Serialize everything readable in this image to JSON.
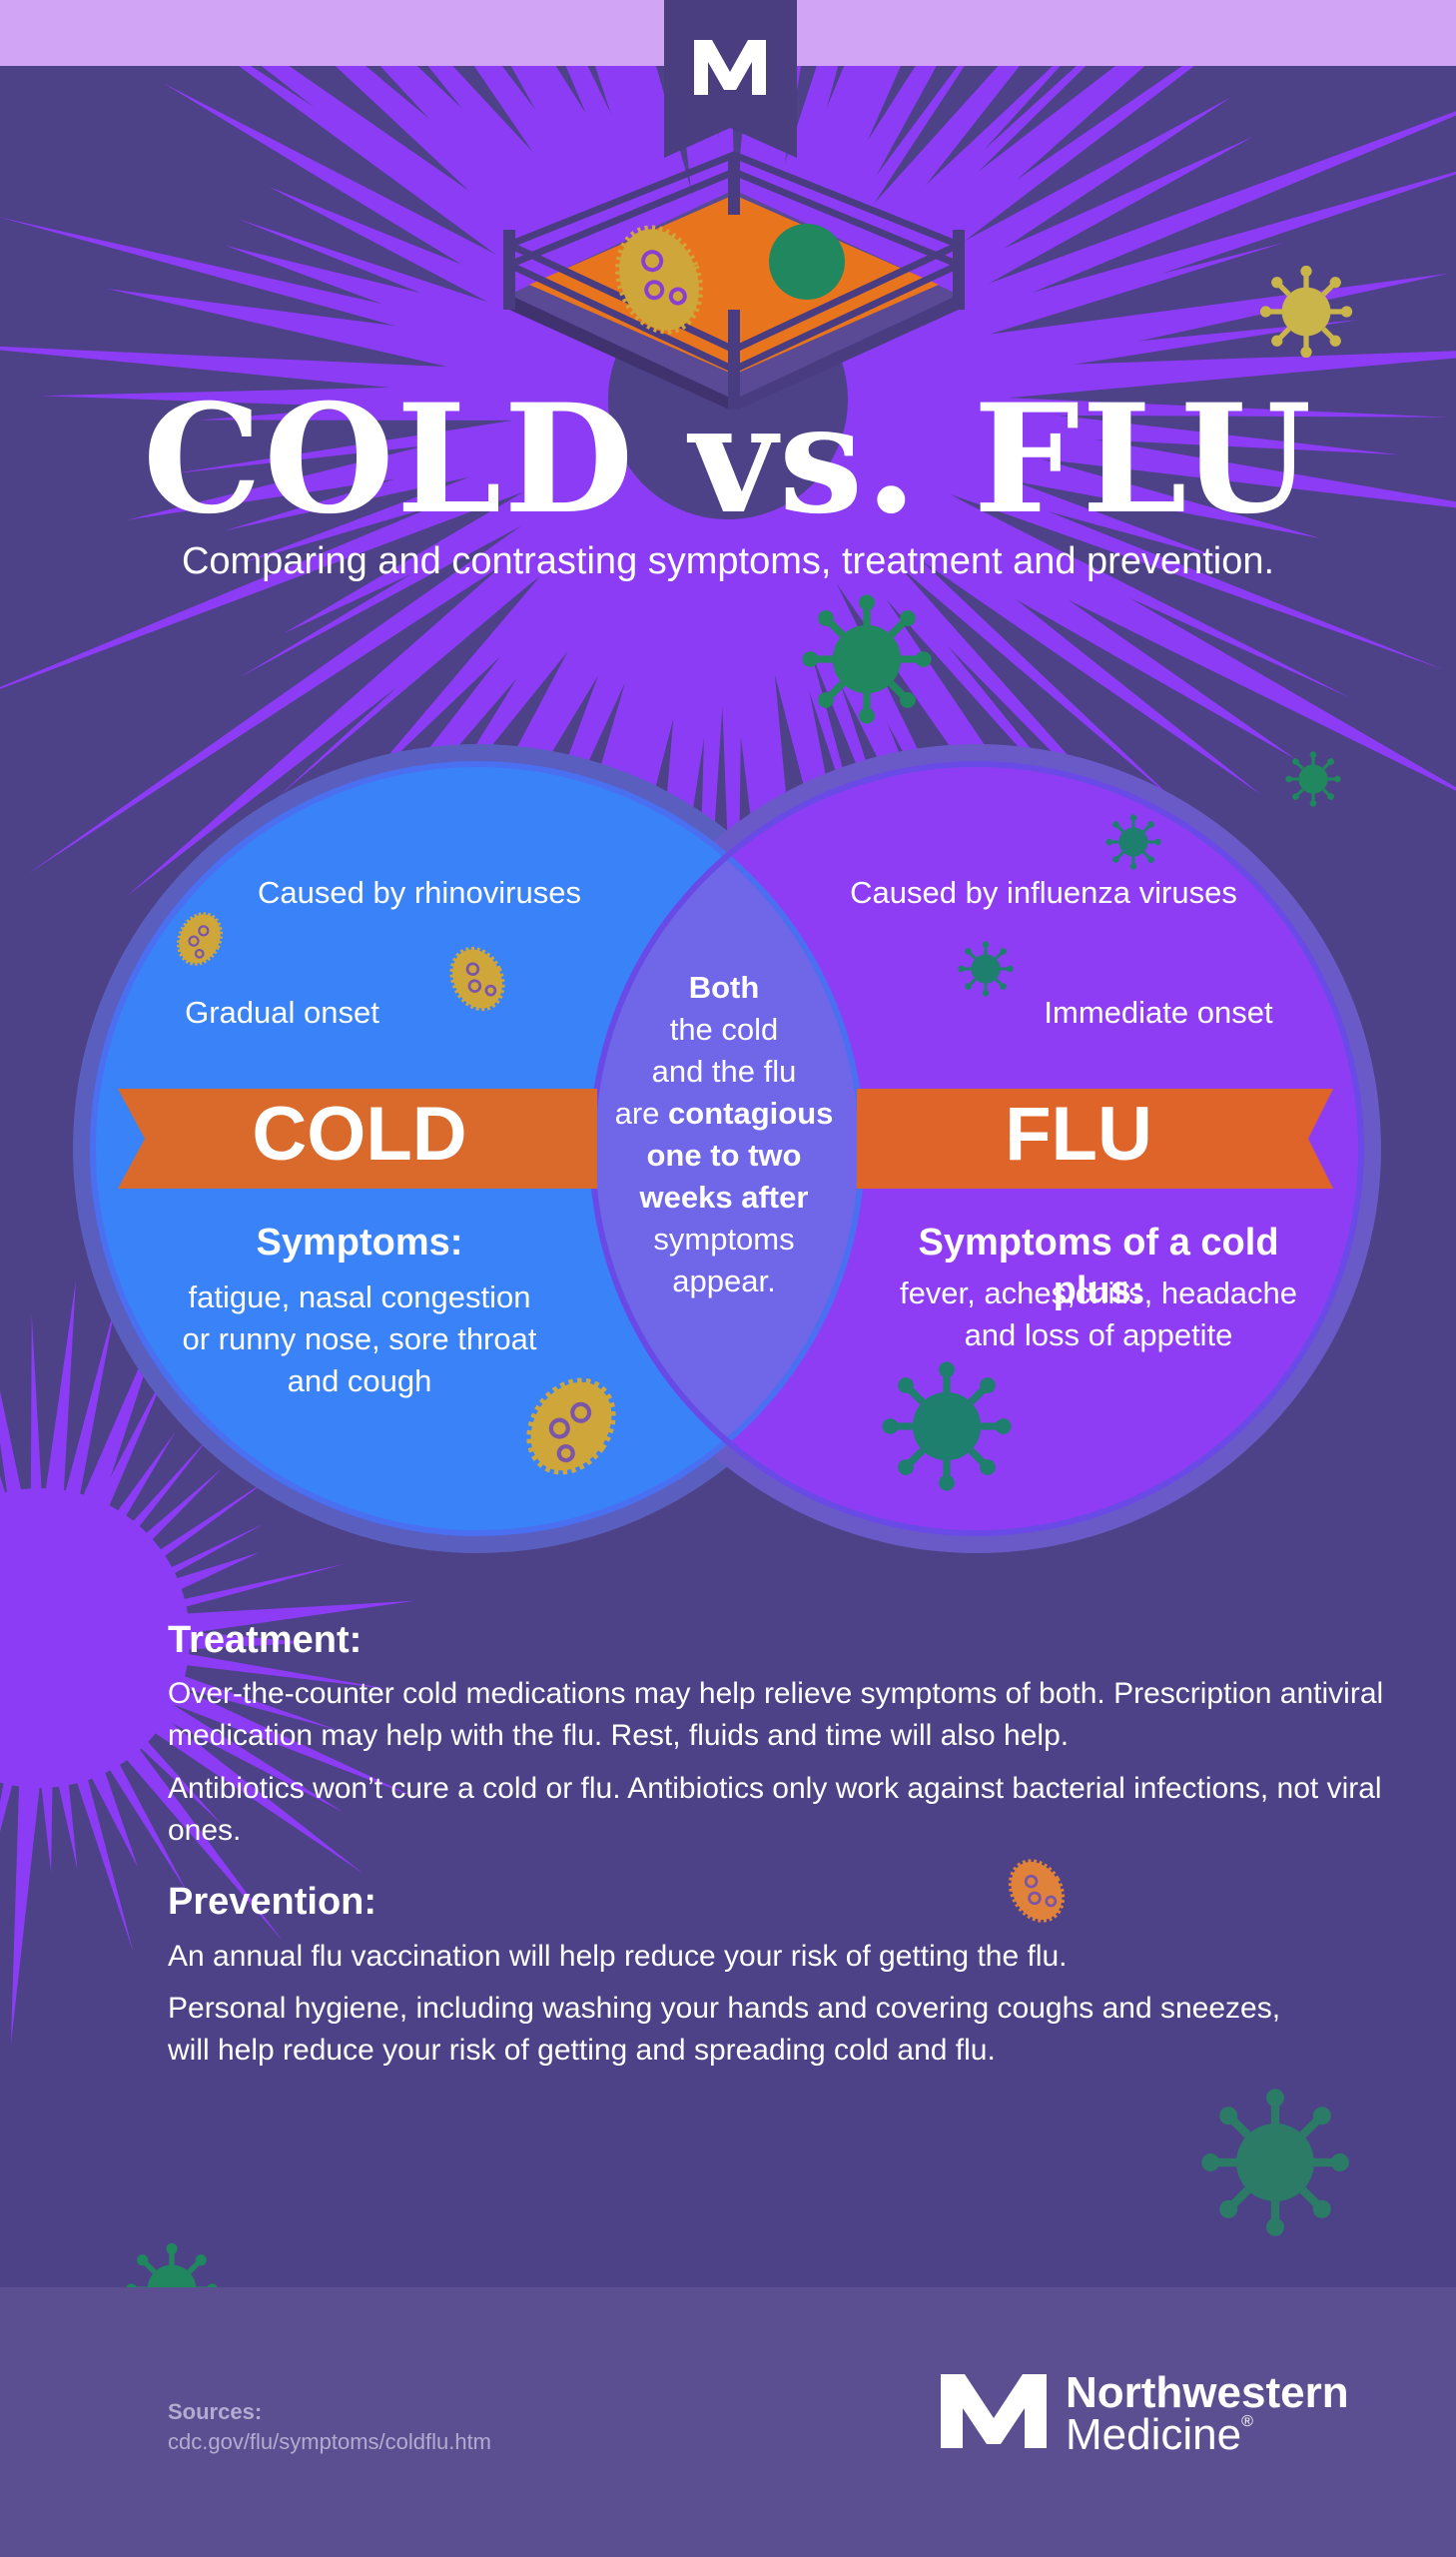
{
  "header": {
    "title": "COLD vs. FLU",
    "subtitle": "Comparing and contrasting symptoms, treatment and prevention."
  },
  "cold": {
    "label": "COLD",
    "cause": "Caused by rhinoviruses",
    "onset": "Gradual onset",
    "symptoms_title": "Symptoms:",
    "symptoms_lines": [
      "fatigue, nasal congestion",
      "or runny nose, sore throat",
      "and cough"
    ]
  },
  "flu": {
    "label": "FLU",
    "cause": "Caused by influenza viruses",
    "onset": "Immediate onset",
    "symptoms_title": "Symptoms of a cold plus:",
    "symptoms_lines": [
      "fever, aches,chills, headache",
      "and loss of appetite"
    ]
  },
  "both": {
    "l1": "Both",
    "l2": "the cold",
    "l3": "and the flu",
    "l4a": "are ",
    "l4b": "contagious",
    "l5": "one to two",
    "l6": "weeks after",
    "l7": "symptoms",
    "l8": "appear."
  },
  "treatment": {
    "title": "Treatment:",
    "p1_l1": "Over-the-counter cold medications may help relieve symptoms of both. Prescription antiviral",
    "p1_l2": "medication may help with the flu. Rest, fluids and time will also help.",
    "p2": "Antibiotics won’t cure a cold or flu. Antibiotics only work against bacterial infections, not viral ones."
  },
  "prevention": {
    "title": "Prevention:",
    "p1": "An annual flu vaccination will help reduce your risk of getting the flu.",
    "p2_l1": "Personal hygiene, including washing your hands and covering coughs and sneezes,",
    "p2_l2": "will help reduce your risk of getting and spreading cold and flu."
  },
  "footer": {
    "sources_label": "Sources:",
    "sources_url": "cdc.gov/flu/symptoms/coldflu.htm",
    "brand_line1": "Northwestern",
    "brand_line2": "Medicine",
    "registered": "®"
  },
  "colors": {
    "background": "#4d4187",
    "burst": "#8c3cf5",
    "cold_circle": "#3a82f7",
    "flu_circle": "#8f3df5",
    "ribbon": "#d96a2c",
    "virus_gold": "#cfa63a",
    "virus_green": "#21875e",
    "virus_orange": "#e0823a"
  },
  "icons": [
    "nm-logo-icon",
    "boxing-ring-icon",
    "virus-icon",
    "bacteria-icon"
  ]
}
